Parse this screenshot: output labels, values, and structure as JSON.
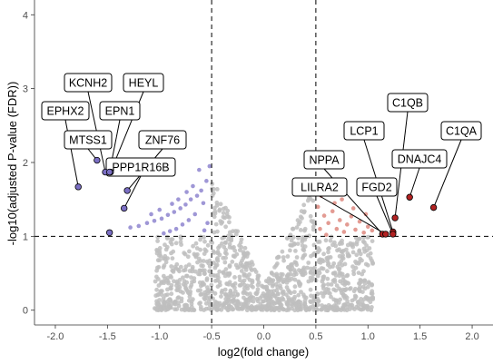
{
  "chart_data": {
    "type": "scatter",
    "subtype": "volcano",
    "title": "",
    "xlabel": "log2(fold change)",
    "ylabel": "-log10(adjusted P-value (FDR))",
    "xlim": [
      -2.2,
      2.2
    ],
    "ylim": [
      -0.2,
      4.2
    ],
    "x_ticks": [
      -2.0,
      -1.5,
      -1.0,
      -0.5,
      0.0,
      0.5,
      1.0,
      1.5,
      2.0
    ],
    "x_tick_labels": [
      "-2.0",
      "-1.5",
      "-1.0",
      "-0.5",
      "0.0",
      "0.5",
      "1.0",
      "1.5",
      "2.0"
    ],
    "y_ticks": [
      0,
      1,
      2,
      3,
      4
    ],
    "y_tick_labels": [
      "0",
      "1",
      "2",
      "3",
      "4"
    ],
    "grid": false,
    "thresholds": {
      "x": [
        -0.5,
        0.5
      ],
      "y": 1.0
    },
    "colors": {
      "nonsignificant": "#bebebe",
      "down": "#9f97d6",
      "up": "#e39b93",
      "labeled_down": "#7b6fc4",
      "labeled_up": "#b22222",
      "threshold_line": "#000000"
    },
    "labeled_genes": [
      {
        "gene": "KCNH2",
        "x": -1.52,
        "y": 1.87,
        "direction": "down"
      },
      {
        "gene": "HEYL",
        "x": -1.47,
        "y": 1.87,
        "direction": "down"
      },
      {
        "gene": "EPHX2",
        "x": -1.78,
        "y": 1.67,
        "direction": "down"
      },
      {
        "gene": "EPN1",
        "x": -1.48,
        "y": 1.87,
        "direction": "down"
      },
      {
        "gene": "MTSS1",
        "x": -1.6,
        "y": 2.03,
        "direction": "down"
      },
      {
        "gene": "ZNF76",
        "x": -1.31,
        "y": 1.62,
        "direction": "down"
      },
      {
        "gene": "PPP1R16B",
        "x": -1.34,
        "y": 1.38,
        "direction": "down"
      },
      {
        "gene": "",
        "x": -1.48,
        "y": 1.05,
        "direction": "down"
      },
      {
        "gene": "C1QB",
        "x": 1.26,
        "y": 1.25,
        "direction": "up"
      },
      {
        "gene": "C1QA",
        "x": 1.63,
        "y": 1.39,
        "direction": "up"
      },
      {
        "gene": "LCP1",
        "x": 1.24,
        "y": 1.06,
        "direction": "up"
      },
      {
        "gene": "DNAJC4",
        "x": 1.4,
        "y": 1.53,
        "direction": "up"
      },
      {
        "gene": "NPPA",
        "x": 1.14,
        "y": 1.03,
        "direction": "up"
      },
      {
        "gene": "LILRA2",
        "x": 1.17,
        "y": 1.03,
        "direction": "up"
      },
      {
        "gene": "FGD2",
        "x": 1.24,
        "y": 1.03,
        "direction": "up"
      }
    ],
    "significant_down_points": [
      [
        -0.55,
        1.75
      ],
      [
        -0.6,
        1.62
      ],
      [
        -0.64,
        1.55
      ],
      [
        -0.7,
        1.5
      ],
      [
        -0.75,
        1.43
      ],
      [
        -0.8,
        1.38
      ],
      [
        -0.86,
        1.33
      ],
      [
        -0.92,
        1.29
      ],
      [
        -0.98,
        1.24
      ],
      [
        -1.05,
        1.21
      ],
      [
        -1.12,
        1.18
      ],
      [
        -1.2,
        1.14
      ],
      [
        -1.28,
        1.12
      ],
      [
        -0.58,
        1.45
      ],
      [
        -0.66,
        1.3
      ],
      [
        -0.72,
        1.22
      ],
      [
        -0.78,
        1.16
      ],
      [
        -0.84,
        1.1
      ],
      [
        -0.9,
        1.07
      ],
      [
        -0.96,
        1.04
      ],
      [
        -0.62,
        1.9
      ],
      [
        -0.68,
        1.68
      ],
      [
        -0.52,
        1.95
      ],
      [
        -0.54,
        1.18
      ],
      [
        -0.57,
        1.08
      ],
      [
        -0.82,
        1.5
      ],
      [
        -1.0,
        1.36
      ],
      [
        -1.08,
        1.3
      ],
      [
        -0.74,
        1.6
      ],
      [
        -0.88,
        1.44
      ]
    ],
    "significant_up_points": [
      [
        0.52,
        1.4
      ],
      [
        0.55,
        1.55
      ],
      [
        0.58,
        1.28
      ],
      [
        0.62,
        1.18
      ],
      [
        0.66,
        1.34
      ],
      [
        0.7,
        1.1
      ],
      [
        0.73,
        1.22
      ],
      [
        0.77,
        1.06
      ],
      [
        0.8,
        1.16
      ],
      [
        0.84,
        1.27
      ],
      [
        0.88,
        1.09
      ],
      [
        0.92,
        1.2
      ],
      [
        0.96,
        1.05
      ],
      [
        1.0,
        1.13
      ],
      [
        1.04,
        1.08
      ],
      [
        0.6,
        1.02
      ],
      [
        0.54,
        1.1
      ],
      [
        0.68,
        1.45
      ],
      [
        0.86,
        1.38
      ],
      [
        0.98,
        1.3
      ],
      [
        0.75,
        1.5
      ]
    ],
    "nonsignificant_point_count": 1500
  }
}
